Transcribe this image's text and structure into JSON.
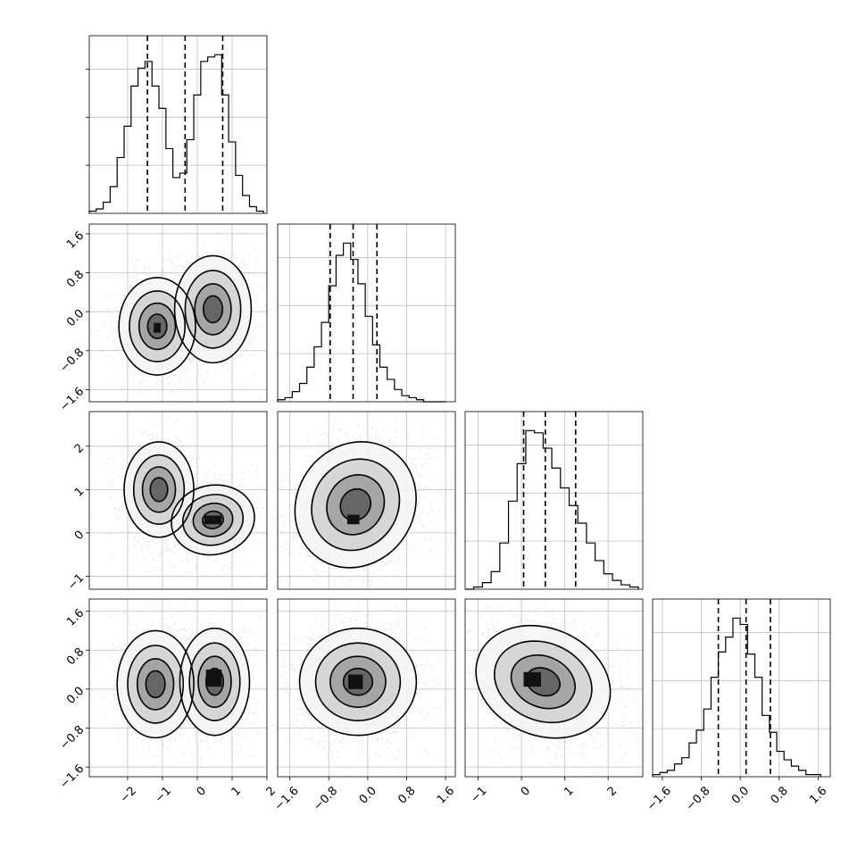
{
  "chart_data": {
    "type": "corner",
    "grid": true,
    "parameters": [
      {
        "index": 0,
        "range": [
          -3.1,
          2.0
        ],
        "x_ticks": [
          -2,
          -1,
          0,
          1,
          2
        ],
        "x_tick_labels": [
          "−2",
          "−1",
          "0",
          "1",
          "2"
        ],
        "y_ticks": [
          -1.6,
          -0.8,
          0.0,
          0.8,
          1.6
        ],
        "quantiles": [
          -1.43,
          -0.35,
          0.73
        ],
        "hist_bin_edges": [
          -3.1,
          -2.9,
          -2.7,
          -2.5,
          -2.3,
          -2.1,
          -1.9,
          -1.7,
          -1.5,
          -1.3,
          -1.1,
          -0.9,
          -0.7,
          -0.5,
          -0.3,
          -0.1,
          0.1,
          0.3,
          0.5,
          0.7,
          0.9,
          1.1,
          1.3,
          1.5,
          1.7,
          1.9
        ],
        "hist_counts": [
          1,
          2,
          5,
          12,
          25,
          39,
          57,
          65,
          68,
          57,
          47,
          29,
          16,
          18,
          33,
          53,
          68,
          70,
          71,
          53,
          32,
          17,
          8,
          3,
          1
        ]
      },
      {
        "index": 1,
        "range": [
          -1.85,
          1.8
        ],
        "ticks": [
          -1.6,
          -0.8,
          0.0,
          0.8,
          1.6
        ],
        "tick_labels": [
          "−1.6",
          "−0.8",
          "0.0",
          "0.8",
          "1.6"
        ],
        "quantiles": [
          -0.77,
          -0.3,
          0.19
        ],
        "hist_bin_edges": [
          -1.85,
          -1.7,
          -1.55,
          -1.4,
          -1.25,
          -1.1,
          -0.95,
          -0.8,
          -0.65,
          -0.5,
          -0.35,
          -0.2,
          -0.05,
          0.1,
          0.25,
          0.4,
          0.55,
          0.7,
          0.85,
          1.0,
          1.15,
          1.3,
          1.45,
          1.6
        ],
        "hist_counts": [
          1,
          2,
          5,
          9,
          17,
          27,
          39,
          57,
          72,
          78,
          70,
          58,
          42,
          28,
          17,
          11,
          6,
          3,
          2,
          1,
          0,
          0,
          0
        ]
      },
      {
        "index": 2,
        "range": [
          -1.3,
          2.8
        ],
        "x_ticks": [
          -1,
          0,
          1,
          2
        ],
        "x_tick_labels": [
          "−1",
          "0",
          "1",
          "2"
        ],
        "y_ticks": [
          -1,
          0,
          1,
          2
        ],
        "y_tick_labels": [
          "−1",
          "0",
          "1",
          "2"
        ],
        "quantiles": [
          0.05,
          0.55,
          1.25
        ],
        "hist_bin_edges": [
          -1.3,
          -1.1,
          -0.9,
          -0.7,
          -0.5,
          -0.3,
          -0.1,
          0.1,
          0.3,
          0.5,
          0.7,
          0.9,
          1.1,
          1.3,
          1.5,
          1.7,
          1.9,
          2.1,
          2.3,
          2.5,
          2.7
        ],
        "hist_counts": [
          0,
          1,
          3,
          8,
          21,
          40,
          57,
          72,
          71,
          64,
          55,
          46,
          38,
          30,
          21,
          13,
          7,
          4,
          2,
          1
        ]
      },
      {
        "index": 3,
        "range": [
          -1.8,
          1.85
        ],
        "x_ticks": [
          -1.6,
          -0.8,
          0.0,
          0.8,
          1.6
        ],
        "x_tick_labels": [
          "−1.6",
          "−0.8",
          "0.0",
          "0.8",
          "1.6"
        ],
        "y_ticks": [
          -1.6,
          -0.8,
          0.0,
          0.8,
          1.6
        ],
        "y_tick_labels": [
          "−1.6",
          "−0.8",
          "0.0",
          "0.8",
          "1.6"
        ],
        "quantiles": [
          -0.45,
          0.12,
          0.62
        ],
        "hist_bin_edges": [
          -1.8,
          -1.65,
          -1.5,
          -1.35,
          -1.2,
          -1.05,
          -0.9,
          -0.75,
          -0.6,
          -0.45,
          -0.3,
          -0.15,
          0.0,
          0.15,
          0.3,
          0.45,
          0.6,
          0.75,
          0.9,
          1.05,
          1.2,
          1.35,
          1.5,
          1.65
        ],
        "hist_counts": [
          1,
          2,
          3,
          6,
          9,
          16,
          22,
          32,
          47,
          59,
          66,
          75,
          72,
          58,
          47,
          29,
          21,
          12,
          8,
          5,
          3,
          1,
          1
        ]
      }
    ],
    "pairs": [
      {
        "x": 0,
        "y": 1,
        "modes": [
          {
            "center": [
              -1.15,
              -0.3
            ],
            "sigma": [
              0.55,
              0.5
            ],
            "rotation": 0
          },
          {
            "center": [
              0.45,
              0.05
            ],
            "sigma": [
              0.55,
              0.55
            ],
            "rotation": 0
          }
        ],
        "dense_block": [
          -1.25,
          -0.43,
          0.2,
          0.2
        ]
      },
      {
        "x": 0,
        "y": 2,
        "modes": [
          {
            "center": [
              -1.1,
              1.0
            ],
            "sigma": [
              0.5,
              0.55
            ],
            "rotation": 0
          },
          {
            "center": [
              0.45,
              0.3
            ],
            "sigma": [
              0.6,
              0.4
            ],
            "rotation": 0.2
          }
        ],
        "dense_block": [
          0.2,
          0.2,
          0.5,
          0.2
        ]
      },
      {
        "x": 1,
        "y": 2,
        "modes": [
          {
            "center": [
              -0.25,
              0.65
            ],
            "sigma": [
              0.6,
              0.75
            ],
            "rotation": -0.6
          }
        ],
        "dense_block": [
          -0.42,
          0.2,
          0.25,
          0.22
        ]
      },
      {
        "x": 0,
        "y": 3,
        "modes": [
          {
            "center": [
              -1.2,
              0.1
            ],
            "sigma": [
              0.55,
              0.55
            ],
            "rotation": 0
          },
          {
            "center": [
              0.5,
              0.15
            ],
            "sigma": [
              0.5,
              0.55
            ],
            "rotation": 0
          }
        ],
        "dense_block": [
          0.25,
          0.05,
          0.45,
          0.35
        ]
      },
      {
        "x": 1,
        "y": 3,
        "modes": [
          {
            "center": [
              -0.2,
              0.15
            ],
            "sigma": [
              0.6,
              0.55
            ],
            "rotation": 0
          }
        ],
        "dense_block": [
          -0.4,
          0.0,
          0.3,
          0.3
        ]
      },
      {
        "x": 2,
        "y": 3,
        "modes": [
          {
            "center": [
              0.5,
              0.15
            ],
            "sigma": [
              0.8,
              0.55
            ],
            "rotation": -0.4
          }
        ],
        "dense_block": [
          0.05,
          0.05,
          0.4,
          0.3
        ]
      }
    ]
  }
}
